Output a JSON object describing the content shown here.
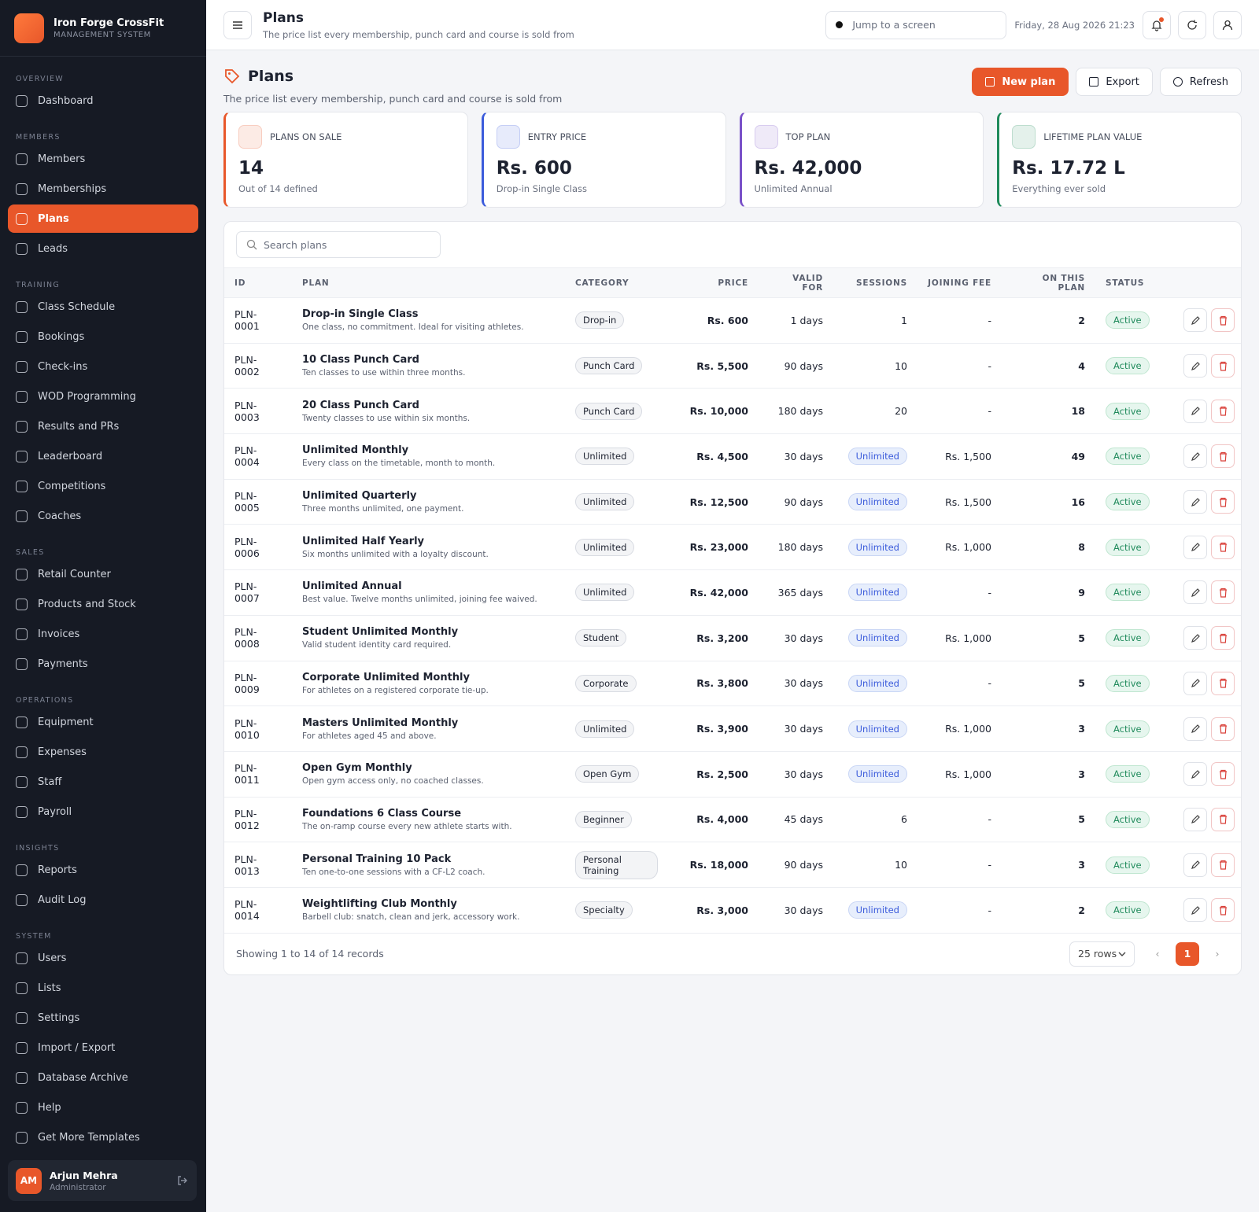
{
  "brand": {
    "name": "Iron Forge CrossFit",
    "subtitle": "MANAGEMENT SYSTEM"
  },
  "sidebar": {
    "sections": [
      {
        "title": "OVERVIEW",
        "items": [
          {
            "label": "Dashboard"
          }
        ]
      },
      {
        "title": "MEMBERS",
        "items": [
          {
            "label": "Members"
          },
          {
            "label": "Memberships"
          },
          {
            "label": "Plans",
            "active": true
          },
          {
            "label": "Leads"
          }
        ]
      },
      {
        "title": "TRAINING",
        "items": [
          {
            "label": "Class Schedule"
          },
          {
            "label": "Bookings"
          },
          {
            "label": "Check-ins"
          },
          {
            "label": "WOD Programming"
          },
          {
            "label": "Results and PRs"
          },
          {
            "label": "Leaderboard"
          },
          {
            "label": "Competitions"
          },
          {
            "label": "Coaches"
          }
        ]
      },
      {
        "title": "SALES",
        "items": [
          {
            "label": "Retail Counter"
          },
          {
            "label": "Products and Stock"
          },
          {
            "label": "Invoices"
          },
          {
            "label": "Payments"
          }
        ]
      },
      {
        "title": "OPERATIONS",
        "items": [
          {
            "label": "Equipment"
          },
          {
            "label": "Expenses"
          },
          {
            "label": "Staff"
          },
          {
            "label": "Payroll"
          }
        ]
      },
      {
        "title": "INSIGHTS",
        "items": [
          {
            "label": "Reports"
          },
          {
            "label": "Audit Log"
          }
        ]
      },
      {
        "title": "SYSTEM",
        "items": [
          {
            "label": "Users"
          },
          {
            "label": "Lists"
          },
          {
            "label": "Settings"
          },
          {
            "label": "Import / Export"
          },
          {
            "label": "Database Archive"
          },
          {
            "label": "Help"
          },
          {
            "label": "Get More Templates"
          }
        ]
      }
    ]
  },
  "user": {
    "initials": "AM",
    "name": "Arjun Mehra",
    "role": "Administrator"
  },
  "topbar": {
    "title": "Plans",
    "subtitle": "The price list every membership, punch card and course is sold from",
    "search_placeholder": "Jump to a screen",
    "datetime": "Friday, 28 Aug 2026 21:23"
  },
  "page": {
    "title": "Plans",
    "subtitle": "The price list every membership, punch card and course is sold from",
    "actions": [
      "New plan",
      "Export",
      "Refresh"
    ]
  },
  "stats": [
    {
      "label": "PLANS ON SALE",
      "value": "14",
      "note": "Out of 14 defined",
      "color": "#e8572a"
    },
    {
      "label": "ENTRY PRICE",
      "value": "Rs. 600",
      "note": "Drop-in Single Class",
      "color": "#3b5bdb"
    },
    {
      "label": "TOP PLAN",
      "value": "Rs. 42,000",
      "note": "Unlimited Annual",
      "color": "#7950c8"
    },
    {
      "label": "LIFETIME PLAN VALUE",
      "value": "Rs. 17.72 L",
      "note": "Everything ever sold",
      "color": "#1f8a5b"
    }
  ],
  "table": {
    "search_placeholder": "Search plans",
    "columns": [
      "ID",
      "PLAN",
      "CATEGORY",
      "PRICE",
      "VALID FOR",
      "SESSIONS",
      "JOINING FEE",
      "ON THIS PLAN",
      "STATUS"
    ],
    "rows": [
      {
        "id": "PLN-0001",
        "plan": "Drop-in Single Class",
        "description": "One class, no commitment. Ideal for visiting athletes.",
        "category": "Drop-in",
        "price": "Rs. 600",
        "valid_for": "1 days",
        "sessions": 1,
        "joining_fee": "-",
        "members": 2,
        "status": "Active"
      },
      {
        "id": "PLN-0002",
        "plan": "10 Class Punch Card",
        "description": "Ten classes to use within three months.",
        "category": "Punch Card",
        "price": "Rs. 5,500",
        "valid_for": "90 days",
        "sessions": 10,
        "joining_fee": "-",
        "members": 4,
        "status": "Active"
      },
      {
        "id": "PLN-0003",
        "plan": "20 Class Punch Card",
        "description": "Twenty classes to use within six months.",
        "category": "Punch Card",
        "price": "Rs. 10,000",
        "valid_for": "180 days",
        "sessions": 20,
        "joining_fee": "-",
        "members": 18,
        "status": "Active"
      },
      {
        "id": "PLN-0004",
        "plan": "Unlimited Monthly",
        "description": "Every class on the timetable, month to month.",
        "category": "Unlimited",
        "price": "Rs. 4,500",
        "valid_for": "30 days",
        "sessions": "Unlimited",
        "joining_fee": "Rs. 1,500",
        "members": 49,
        "status": "Active"
      },
      {
        "id": "PLN-0005",
        "plan": "Unlimited Quarterly",
        "description": "Three months unlimited, one payment.",
        "category": "Unlimited",
        "price": "Rs. 12,500",
        "valid_for": "90 days",
        "sessions": "Unlimited",
        "joining_fee": "Rs. 1,500",
        "members": 16,
        "status": "Active"
      },
      {
        "id": "PLN-0006",
        "plan": "Unlimited Half Yearly",
        "description": "Six months unlimited with a loyalty discount.",
        "category": "Unlimited",
        "price": "Rs. 23,000",
        "valid_for": "180 days",
        "sessions": "Unlimited",
        "joining_fee": "Rs. 1,000",
        "members": 8,
        "status": "Active"
      },
      {
        "id": "PLN-0007",
        "plan": "Unlimited Annual",
        "description": "Best value. Twelve months unlimited, joining fee waived.",
        "category": "Unlimited",
        "price": "Rs. 42,000",
        "valid_for": "365 days",
        "sessions": "Unlimited",
        "joining_fee": "-",
        "members": 9,
        "status": "Active"
      },
      {
        "id": "PLN-0008",
        "plan": "Student Unlimited Monthly",
        "description": "Valid student identity card required.",
        "category": "Student",
        "price": "Rs. 3,200",
        "valid_for": "30 days",
        "sessions": "Unlimited",
        "joining_fee": "Rs. 1,000",
        "members": 5,
        "status": "Active"
      },
      {
        "id": "PLN-0009",
        "plan": "Corporate Unlimited Monthly",
        "description": "For athletes on a registered corporate tie-up.",
        "category": "Corporate",
        "price": "Rs. 3,800",
        "valid_for": "30 days",
        "sessions": "Unlimited",
        "joining_fee": "-",
        "members": 5,
        "status": "Active"
      },
      {
        "id": "PLN-0010",
        "plan": "Masters Unlimited Monthly",
        "description": "For athletes aged 45 and above.",
        "category": "Unlimited",
        "price": "Rs. 3,900",
        "valid_for": "30 days",
        "sessions": "Unlimited",
        "joining_fee": "Rs. 1,000",
        "members": 3,
        "status": "Active"
      },
      {
        "id": "PLN-0011",
        "plan": "Open Gym Monthly",
        "description": "Open gym access only, no coached classes.",
        "category": "Open Gym",
        "price": "Rs. 2,500",
        "valid_for": "30 days",
        "sessions": "Unlimited",
        "joining_fee": "Rs. 1,000",
        "members": 3,
        "status": "Active"
      },
      {
        "id": "PLN-0012",
        "plan": "Foundations 6 Class Course",
        "description": "The on-ramp course every new athlete starts with.",
        "category": "Beginner",
        "price": "Rs. 4,000",
        "valid_for": "45 days",
        "sessions": 6,
        "joining_fee": "-",
        "members": 5,
        "status": "Active"
      },
      {
        "id": "PLN-0013",
        "plan": "Personal Training 10 Pack",
        "description": "Ten one-to-one sessions with a CF-L2 coach.",
        "category": "Personal Training",
        "price": "Rs. 18,000",
        "valid_for": "90 days",
        "sessions": 10,
        "joining_fee": "-",
        "members": 3,
        "status": "Active"
      },
      {
        "id": "PLN-0014",
        "plan": "Weightlifting Club Monthly",
        "description": "Barbell club: snatch, clean and jerk, accessory work.",
        "category": "Specialty",
        "price": "Rs. 3,000",
        "valid_for": "30 days",
        "sessions": "Unlimited",
        "joining_fee": "-",
        "members": 2,
        "status": "Active"
      }
    ],
    "footer": "Showing 1 to 14 of 14 records",
    "page_size": "25 rows",
    "current_page": "1"
  }
}
